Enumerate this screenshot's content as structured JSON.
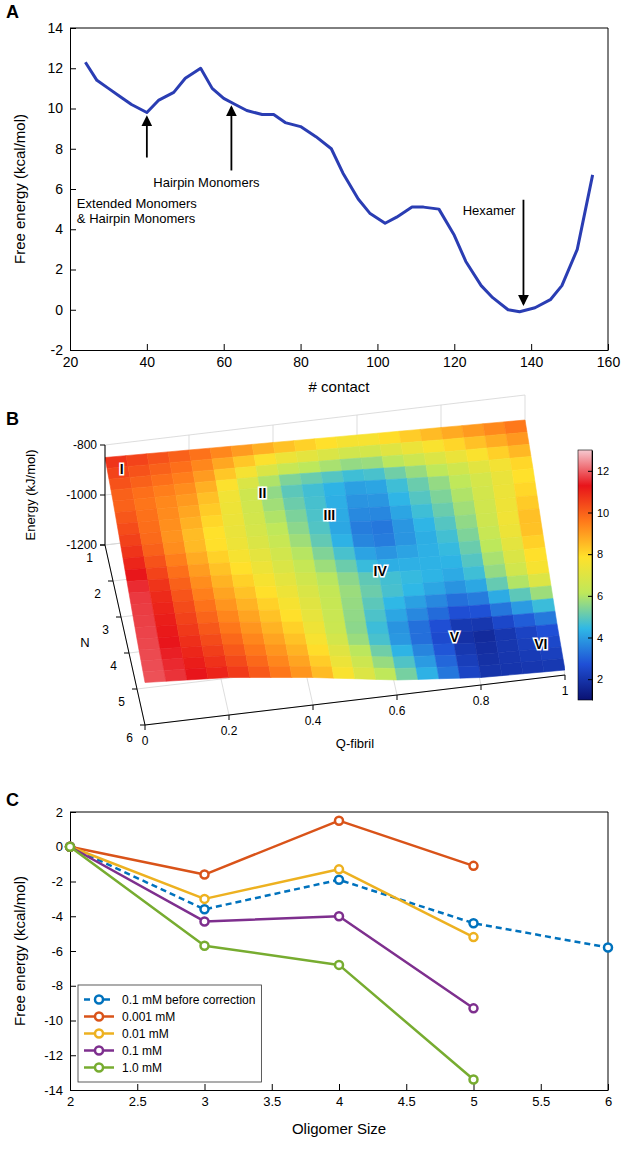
{
  "chart_data": [
    {
      "type": "line",
      "panel": "A",
      "x_label": "# contact",
      "y_label": "Free energy (kcal/mol)",
      "x": [
        24,
        27,
        30,
        33,
        36,
        40,
        43,
        47,
        50,
        54,
        57,
        60,
        63,
        66,
        70,
        73,
        76,
        80,
        84,
        88,
        91,
        95,
        98,
        102,
        105,
        109,
        112,
        116,
        120,
        123,
        127,
        130,
        134,
        137,
        141,
        145,
        148,
        152,
        156
      ],
      "values": [
        12.3,
        11.4,
        11.0,
        10.6,
        10.2,
        9.8,
        10.4,
        10.8,
        11.5,
        12.0,
        11.0,
        10.5,
        10.2,
        9.9,
        9.7,
        9.7,
        9.3,
        9.1,
        8.6,
        8.0,
        6.8,
        5.5,
        4.8,
        4.3,
        4.6,
        5.1,
        5.1,
        5.0,
        3.7,
        2.4,
        1.2,
        0.6,
        0.0,
        -0.1,
        0.1,
        0.5,
        1.2,
        3.0,
        6.7
      ],
      "color": "#2a3db3",
      "xlim": [
        20,
        160
      ],
      "xticks": [
        20,
        40,
        60,
        80,
        100,
        120,
        140,
        160
      ],
      "ylim": [
        -2,
        14
      ],
      "yticks": [
        -2,
        0,
        2,
        4,
        6,
        8,
        10,
        12,
        14
      ],
      "annotations": [
        {
          "text": "Extended Monomers\n& Hairpin Monomers",
          "x": 40,
          "y": 9.8
        },
        {
          "text": "Hairpin Monomers",
          "x": 62,
          "y": 10.3
        },
        {
          "text": "Hexamer",
          "x": 138,
          "y": 0
        }
      ]
    },
    {
      "type": "surface",
      "panel": "B",
      "x_label": "Q-fibril",
      "y_label": "N",
      "z_label": "Energy (kJ/mol)",
      "x": [
        0,
        0.2,
        0.4,
        0.6,
        0.8,
        1
      ],
      "y": [
        1,
        2,
        3,
        4,
        5,
        6
      ],
      "z": [
        [
          -850,
          -860,
          -870,
          -880,
          -890,
          -900
        ],
        [
          -880,
          -890,
          -900,
          -920,
          -940,
          -950
        ],
        [
          -920,
          -930,
          -950,
          -990,
          -1010,
          -1020
        ],
        [
          -960,
          -980,
          -1010,
          -1050,
          -1070,
          -1080
        ],
        [
          -1000,
          -1020,
          -1060,
          -1100,
          -1130,
          -1140
        ],
        [
          -1030,
          -1050,
          -1090,
          -1140,
          -1170,
          -1180
        ]
      ],
      "color_values": [
        [
          11,
          10,
          9,
          8,
          9,
          10
        ],
        [
          10,
          9,
          5,
          4,
          6,
          8
        ],
        [
          11,
          8,
          6,
          3,
          5,
          9
        ],
        [
          12,
          9,
          7,
          5,
          4,
          8
        ],
        [
          12,
          10,
          8,
          4,
          1.5,
          3
        ],
        [
          12,
          11,
          9,
          6,
          2,
          2
        ]
      ],
      "xlim": [
        0,
        1
      ],
      "xticks": [
        0,
        0.2,
        0.4,
        0.6,
        0.8,
        1
      ],
      "ylim": [
        1,
        6
      ],
      "yticks": [
        1,
        2,
        3,
        4,
        5,
        6
      ],
      "zlim": [
        -1200,
        -800
      ],
      "zticks": [
        -1200,
        -1000,
        -800
      ],
      "colorbar": {
        "range": [
          1,
          13
        ],
        "ticks": [
          2,
          4,
          6,
          8,
          10,
          12
        ]
      },
      "annotations": [
        {
          "text": "I",
          "x": 0.03,
          "y": 1.5
        },
        {
          "text": "II",
          "x": 0.35,
          "y": 2.3
        },
        {
          "text": "III",
          "x": 0.5,
          "y": 2.8
        },
        {
          "text": "IV",
          "x": 0.6,
          "y": 3.9
        },
        {
          "text": "V",
          "x": 0.75,
          "y": 5.3
        },
        {
          "text": "VI",
          "x": 0.95,
          "y": 5.6
        }
      ]
    },
    {
      "type": "line",
      "panel": "C",
      "x_label": "Oligomer Size",
      "y_label": "Free energy (kcal/mol)",
      "x": [
        2,
        3,
        4,
        5,
        6
      ],
      "series": [
        {
          "name": "0.1 mM before correction",
          "color": "#0072bd",
          "line_style": "dashed",
          "values": [
            0,
            -3.6,
            -1.9,
            -4.4,
            -5.8
          ]
        },
        {
          "name": "0.001 mM",
          "color": "#d95319",
          "line_style": "solid",
          "values": [
            0,
            -1.6,
            1.5,
            -1.1,
            null
          ]
        },
        {
          "name": "0.01 mM",
          "color": "#edb120",
          "line_style": "solid",
          "values": [
            0,
            -3.0,
            -1.3,
            -5.2,
            null
          ]
        },
        {
          "name": "0.1 mM",
          "color": "#7e2f8e",
          "line_style": "solid",
          "values": [
            0,
            -4.3,
            -4.0,
            -9.3,
            null
          ]
        },
        {
          "name": "1.0 mM",
          "color": "#77ac30",
          "line_style": "solid",
          "values": [
            0,
            -5.7,
            -6.8,
            -13.4,
            null
          ]
        }
      ],
      "marker": "circle",
      "xlim": [
        2,
        6
      ],
      "xticks": [
        2,
        2.5,
        3,
        3.5,
        4,
        4.5,
        5,
        5.5,
        6
      ],
      "ylim": [
        -14,
        2
      ],
      "yticks": [
        -14,
        -12,
        -10,
        -8,
        -6,
        -4,
        -2,
        0,
        2
      ],
      "legend": "lower left"
    }
  ]
}
